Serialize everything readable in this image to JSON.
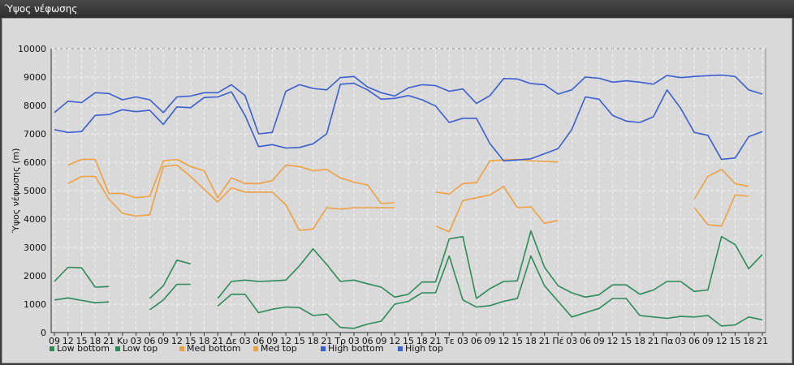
{
  "window": {
    "title": "Ύψος νέφωσης"
  },
  "chart_data": {
    "type": "line",
    "title": "",
    "xlabel": "",
    "ylabel": "Ύψος νέφωσης (m)",
    "ylim": [
      0,
      10000
    ],
    "yticks": [
      0,
      1000,
      2000,
      3000,
      4000,
      5000,
      6000,
      7000,
      8000,
      9000,
      10000
    ],
    "grid": true,
    "legend_position": "bottom-left",
    "x_labels": [
      "09",
      "12",
      "15",
      "18",
      "21",
      "Κυ",
      "03",
      "06",
      "09",
      "12",
      "15",
      "18",
      "21",
      "Δε",
      "03",
      "06",
      "09",
      "12",
      "15",
      "18",
      "21",
      "Τρ",
      "03",
      "06",
      "09",
      "12",
      "15",
      "18",
      "21",
      "Τε",
      "03",
      "06",
      "09",
      "12",
      "15",
      "18",
      "21",
      "Πέ",
      "03",
      "06",
      "09",
      "12",
      "15",
      "18",
      "21",
      "Πα",
      "03",
      "06",
      "09",
      "12",
      "15",
      "18",
      "21"
    ],
    "series": [
      {
        "name": "Low bottom",
        "color": "#2e8b57",
        "values": [
          1150,
          1220,
          1130,
          1050,
          1080,
          null,
          null,
          800,
          1150,
          1700,
          1700,
          null,
          930,
          1350,
          1350,
          700,
          820,
          900,
          880,
          600,
          650,
          180,
          150,
          300,
          400,
          1000,
          1100,
          1400,
          1400,
          2700,
          1150,
          900,
          950,
          1100,
          1200,
          2700,
          1650,
          1100,
          550,
          700,
          850,
          1200,
          1200,
          600,
          550,
          500,
          570,
          550,
          600,
          230,
          270,
          550,
          450
        ]
      },
      {
        "name": "Low top",
        "color": "#2e8b57",
        "values": [
          1800,
          2300,
          2280,
          1600,
          1620,
          null,
          null,
          1200,
          1650,
          2550,
          2420,
          null,
          1200,
          1800,
          1850,
          1800,
          1820,
          1850,
          2350,
          2950,
          2400,
          1800,
          1850,
          1720,
          1600,
          1250,
          1350,
          1780,
          1780,
          3300,
          3380,
          1200,
          1550,
          1800,
          1820,
          3580,
          2300,
          1650,
          1400,
          1250,
          1330,
          1680,
          1680,
          1350,
          1500,
          1800,
          1800,
          1450,
          1500,
          3380,
          3100,
          2250,
          2750
        ]
      },
      {
        "name": "Med bottom",
        "color": "#f0a040",
        "values": [
          null,
          5250,
          5500,
          5500,
          4700,
          4200,
          4100,
          4150,
          5850,
          5900,
          5500,
          5050,
          4600,
          5100,
          4950,
          4950,
          4950,
          4500,
          3600,
          3650,
          4400,
          4350,
          4400,
          4400,
          4400,
          4400,
          null,
          null,
          3750,
          3550,
          4650,
          4750,
          4850,
          5150,
          4400,
          4430,
          3850,
          3950,
          null,
          null,
          null,
          null,
          null,
          null,
          null,
          null,
          null,
          4400,
          3800,
          3750,
          4850,
          4800,
          null
        ]
      },
      {
        "name": "Med top",
        "color": "#f0a040",
        "values": [
          null,
          5900,
          6100,
          6100,
          4900,
          4900,
          4750,
          4800,
          6050,
          6100,
          5850,
          5700,
          4750,
          5450,
          5250,
          5250,
          5350,
          5900,
          5850,
          5700,
          5750,
          5450,
          5300,
          5200,
          4550,
          4570,
          null,
          null,
          4950,
          4880,
          5250,
          5280,
          6050,
          6080,
          6100,
          6050,
          6030,
          6010,
          null,
          null,
          null,
          null,
          null,
          null,
          null,
          null,
          null,
          4700,
          5500,
          5750,
          5250,
          5150,
          null
        ]
      },
      {
        "name": "High bottom",
        "color": "#3a5fd0",
        "values": [
          7150,
          7050,
          7080,
          7650,
          7680,
          7850,
          7780,
          7830,
          7330,
          7950,
          7920,
          8280,
          8300,
          8480,
          7650,
          6550,
          6620,
          6500,
          6520,
          6650,
          7000,
          8750,
          8780,
          8550,
          8220,
          8250,
          8350,
          8200,
          7980,
          7400,
          7550,
          7550,
          6650,
          6050,
          6080,
          6120,
          6300,
          6480,
          7150,
          8300,
          8220,
          7650,
          7450,
          7400,
          7600,
          8550,
          7900,
          7050,
          6950,
          6100,
          6150,
          6900,
          7080
        ]
      },
      {
        "name": "High top",
        "color": "#3a5fd0",
        "values": [
          7750,
          8150,
          8100,
          8450,
          8420,
          8200,
          8300,
          8200,
          7750,
          8300,
          8330,
          8450,
          8450,
          8730,
          8350,
          7000,
          7050,
          8500,
          8730,
          8600,
          8550,
          8980,
          9020,
          8650,
          8450,
          8330,
          8620,
          8730,
          8700,
          8500,
          8580,
          8070,
          8350,
          8950,
          8930,
          8770,
          8730,
          8400,
          8550,
          9000,
          8960,
          8820,
          8870,
          8820,
          8750,
          9060,
          8980,
          9020,
          9050,
          9070,
          9020,
          8550,
          8400
        ]
      }
    ]
  }
}
